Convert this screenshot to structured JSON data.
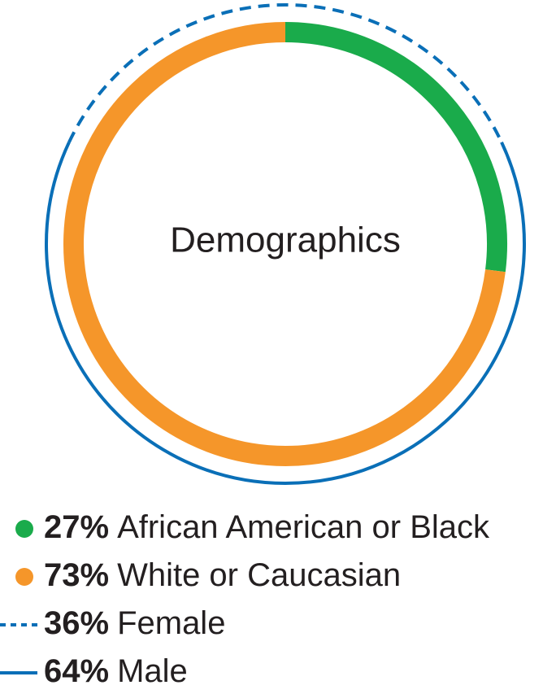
{
  "chart_data": {
    "type": "donut",
    "title": "Demographics",
    "rings": [
      {
        "categories": [
          "African American or Black",
          "White or Caucasian"
        ],
        "values": [
          27,
          73
        ],
        "value_labels": [
          "27%",
          "73%"
        ],
        "colors": [
          "#1aab4b",
          "#f5962a"
        ]
      },
      {
        "categories": [
          "Female",
          "Male"
        ],
        "values": [
          36,
          64
        ],
        "value_labels": [
          "36%",
          "64%"
        ],
        "color": "#0a6fb7",
        "line_styles": [
          "dashed",
          "solid"
        ]
      }
    ]
  }
}
